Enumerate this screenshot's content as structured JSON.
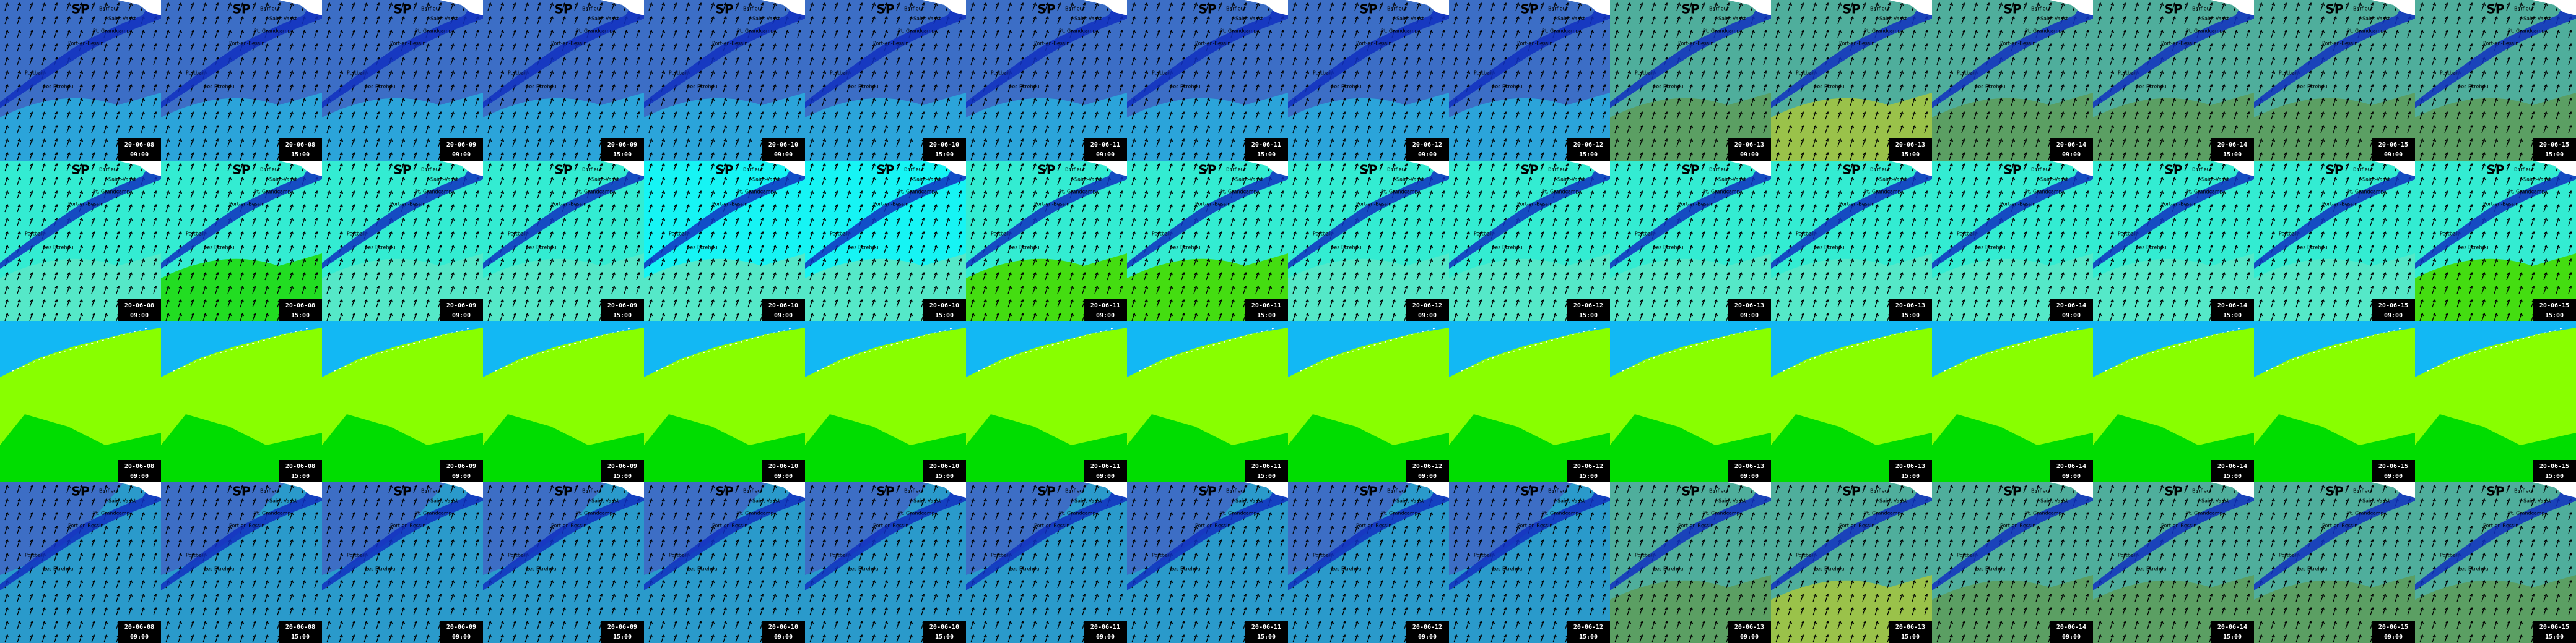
{
  "map_labels": [
    "Barfleur",
    "Saint-Vaast",
    "Pt. Grandcamp",
    "Port-en-Bessin",
    "Portbail",
    "Les Ecrehou"
  ],
  "rows": [
    {
      "tiles": [
        {
          "title": "SP",
          "date": "20-06-08",
          "time": "09:00"
        },
        {
          "title": "SP",
          "date": "20-06-08",
          "time": "15:00"
        },
        {
          "title": "SP",
          "date": "20-06-09",
          "time": "09:00"
        },
        {
          "title": "SP",
          "date": "20-06-09",
          "time": "15:00"
        },
        {
          "title": "SP",
          "date": "20-06-10",
          "time": "09:00"
        },
        {
          "title": "SP",
          "date": "20-06-10",
          "time": "15:00"
        },
        {
          "title": "SP",
          "date": "20-06-11",
          "time": "09:00"
        },
        {
          "title": "SP",
          "date": "20-06-11",
          "time": "15:00"
        },
        {
          "title": "SP",
          "date": "20-06-12",
          "time": "09:00"
        },
        {
          "title": "SP",
          "date": "20-06-12",
          "time": "15:00"
        },
        {
          "title": "SP",
          "date": "20-06-13",
          "time": "09:00"
        },
        {
          "title": "SP",
          "date": "20-06-13",
          "time": "15:00"
        },
        {
          "title": "SP",
          "date": "20-06-14",
          "time": "09:00"
        },
        {
          "title": "SP",
          "date": "20-06-14",
          "time": "15:00"
        },
        {
          "title": "SP",
          "date": "20-06-15",
          "time": "09:00"
        },
        {
          "title": "SP",
          "date": "20-06-15",
          "time": "15:00"
        }
      ]
    },
    {
      "tiles": [
        {
          "title": "SP",
          "date": "20-06-08",
          "time": "09:00"
        },
        {
          "title": "SP",
          "date": "20-06-08",
          "time": "15:00"
        },
        {
          "title": "SP",
          "date": "20-06-09",
          "time": "09:00"
        },
        {
          "title": "SP",
          "date": "20-06-09",
          "time": "15:00"
        },
        {
          "title": "SP",
          "date": "20-06-10",
          "time": "09:00"
        },
        {
          "title": "SP",
          "date": "20-06-10",
          "time": "15:00"
        },
        {
          "title": "SP",
          "date": "20-06-11",
          "time": "09:00"
        },
        {
          "title": "SP",
          "date": "20-06-11",
          "time": "15:00"
        },
        {
          "title": "SP",
          "date": "20-06-12",
          "time": "09:00"
        },
        {
          "title": "SP",
          "date": "20-06-12",
          "time": "15:00"
        },
        {
          "title": "SP",
          "date": "20-06-13",
          "time": "09:00"
        },
        {
          "title": "SP",
          "date": "20-06-13",
          "time": "15:00"
        },
        {
          "title": "SP",
          "date": "20-06-14",
          "time": "09:00"
        },
        {
          "title": "SP",
          "date": "20-06-14",
          "time": "15:00"
        },
        {
          "title": "SP",
          "date": "20-06-15",
          "time": "09:00"
        },
        {
          "title": "SP",
          "date": "20-06-15",
          "time": "15:00"
        }
      ]
    },
    {
      "tiles": [
        {
          "date": "20-06-08",
          "time": "09:00"
        },
        {
          "date": "20-06-08",
          "time": "15:00"
        },
        {
          "date": "20-06-09",
          "time": "09:00"
        },
        {
          "date": "20-06-09",
          "time": "15:00"
        },
        {
          "date": "20-06-10",
          "time": "09:00"
        },
        {
          "date": "20-06-10",
          "time": "15:00"
        },
        {
          "date": "20-06-11",
          "time": "09:00"
        },
        {
          "date": "20-06-11",
          "time": "15:00"
        },
        {
          "date": "20-06-12",
          "time": "09:00"
        },
        {
          "date": "20-06-12",
          "time": "15:00"
        },
        {
          "date": "20-06-13",
          "time": "09:00"
        },
        {
          "date": "20-06-13",
          "time": "15:00"
        },
        {
          "date": "20-06-14",
          "time": "09:00"
        },
        {
          "date": "20-06-14",
          "time": "15:00"
        },
        {
          "date": "20-06-15",
          "time": "09:00"
        },
        {
          "date": "20-06-15",
          "time": "15:00"
        }
      ]
    },
    {
      "tiles": [
        {
          "title": "SP",
          "date": "20-06-08",
          "time": "09:00"
        },
        {
          "title": "SP",
          "date": "20-06-08",
          "time": "15:00"
        },
        {
          "title": "SP",
          "date": "20-06-09",
          "time": "09:00"
        },
        {
          "title": "SP",
          "date": "20-06-09",
          "time": "15:00"
        },
        {
          "title": "SP",
          "date": "20-06-10",
          "time": "09:00"
        },
        {
          "title": "SP",
          "date": "20-06-10",
          "time": "15:00"
        },
        {
          "title": "SP",
          "date": "20-06-11",
          "time": "09:00"
        },
        {
          "title": "SP",
          "date": "20-06-11",
          "time": "15:00"
        },
        {
          "title": "SP",
          "date": "20-06-12",
          "time": "09:00"
        },
        {
          "title": "SP",
          "date": "20-06-12",
          "time": "15:00"
        },
        {
          "title": "SP",
          "date": "20-06-13",
          "time": "09:00"
        },
        {
          "title": "SP",
          "date": "20-06-13",
          "time": "15:00"
        },
        {
          "title": "SP",
          "date": "20-06-14",
          "time": "09:00"
        },
        {
          "title": "SP",
          "date": "20-06-14",
          "time": "15:00"
        },
        {
          "title": "SP",
          "date": "20-06-15",
          "time": "09:00"
        },
        {
          "title": "SP",
          "date": "20-06-15",
          "time": "15:00"
        }
      ]
    }
  ]
}
